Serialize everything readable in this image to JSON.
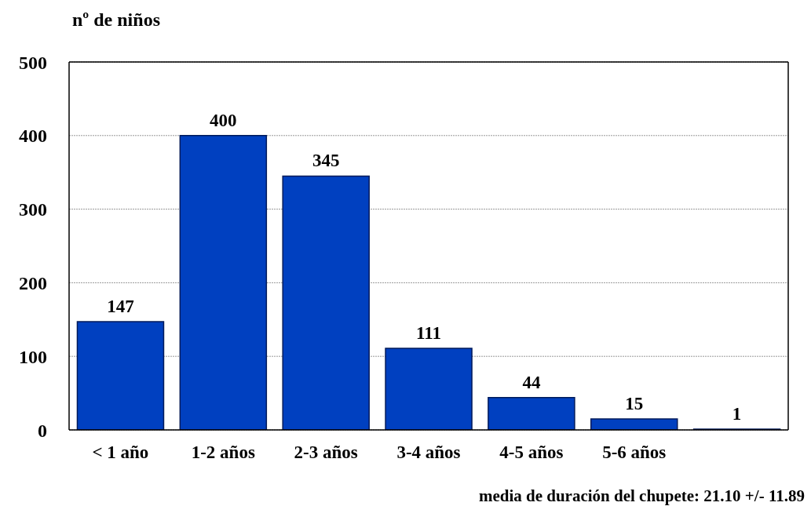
{
  "chart_data": {
    "type": "bar",
    "ylabel": "nº de niños",
    "categories": [
      "< 1 año",
      "1-2 años",
      "2-3 años",
      "3-4 años",
      "4-5 años",
      "5-6 años",
      null
    ],
    "values": [
      147,
      400,
      345,
      111,
      44,
      15,
      1
    ],
    "color": "#0040c0",
    "ylim": [
      0,
      500
    ],
    "yticks": [
      0,
      100,
      200,
      300,
      400,
      500
    ],
    "grid": "y",
    "data_labels": true,
    "annotations": [
      "media de duración del chupete: 21.10 +/- 11.89"
    ]
  }
}
